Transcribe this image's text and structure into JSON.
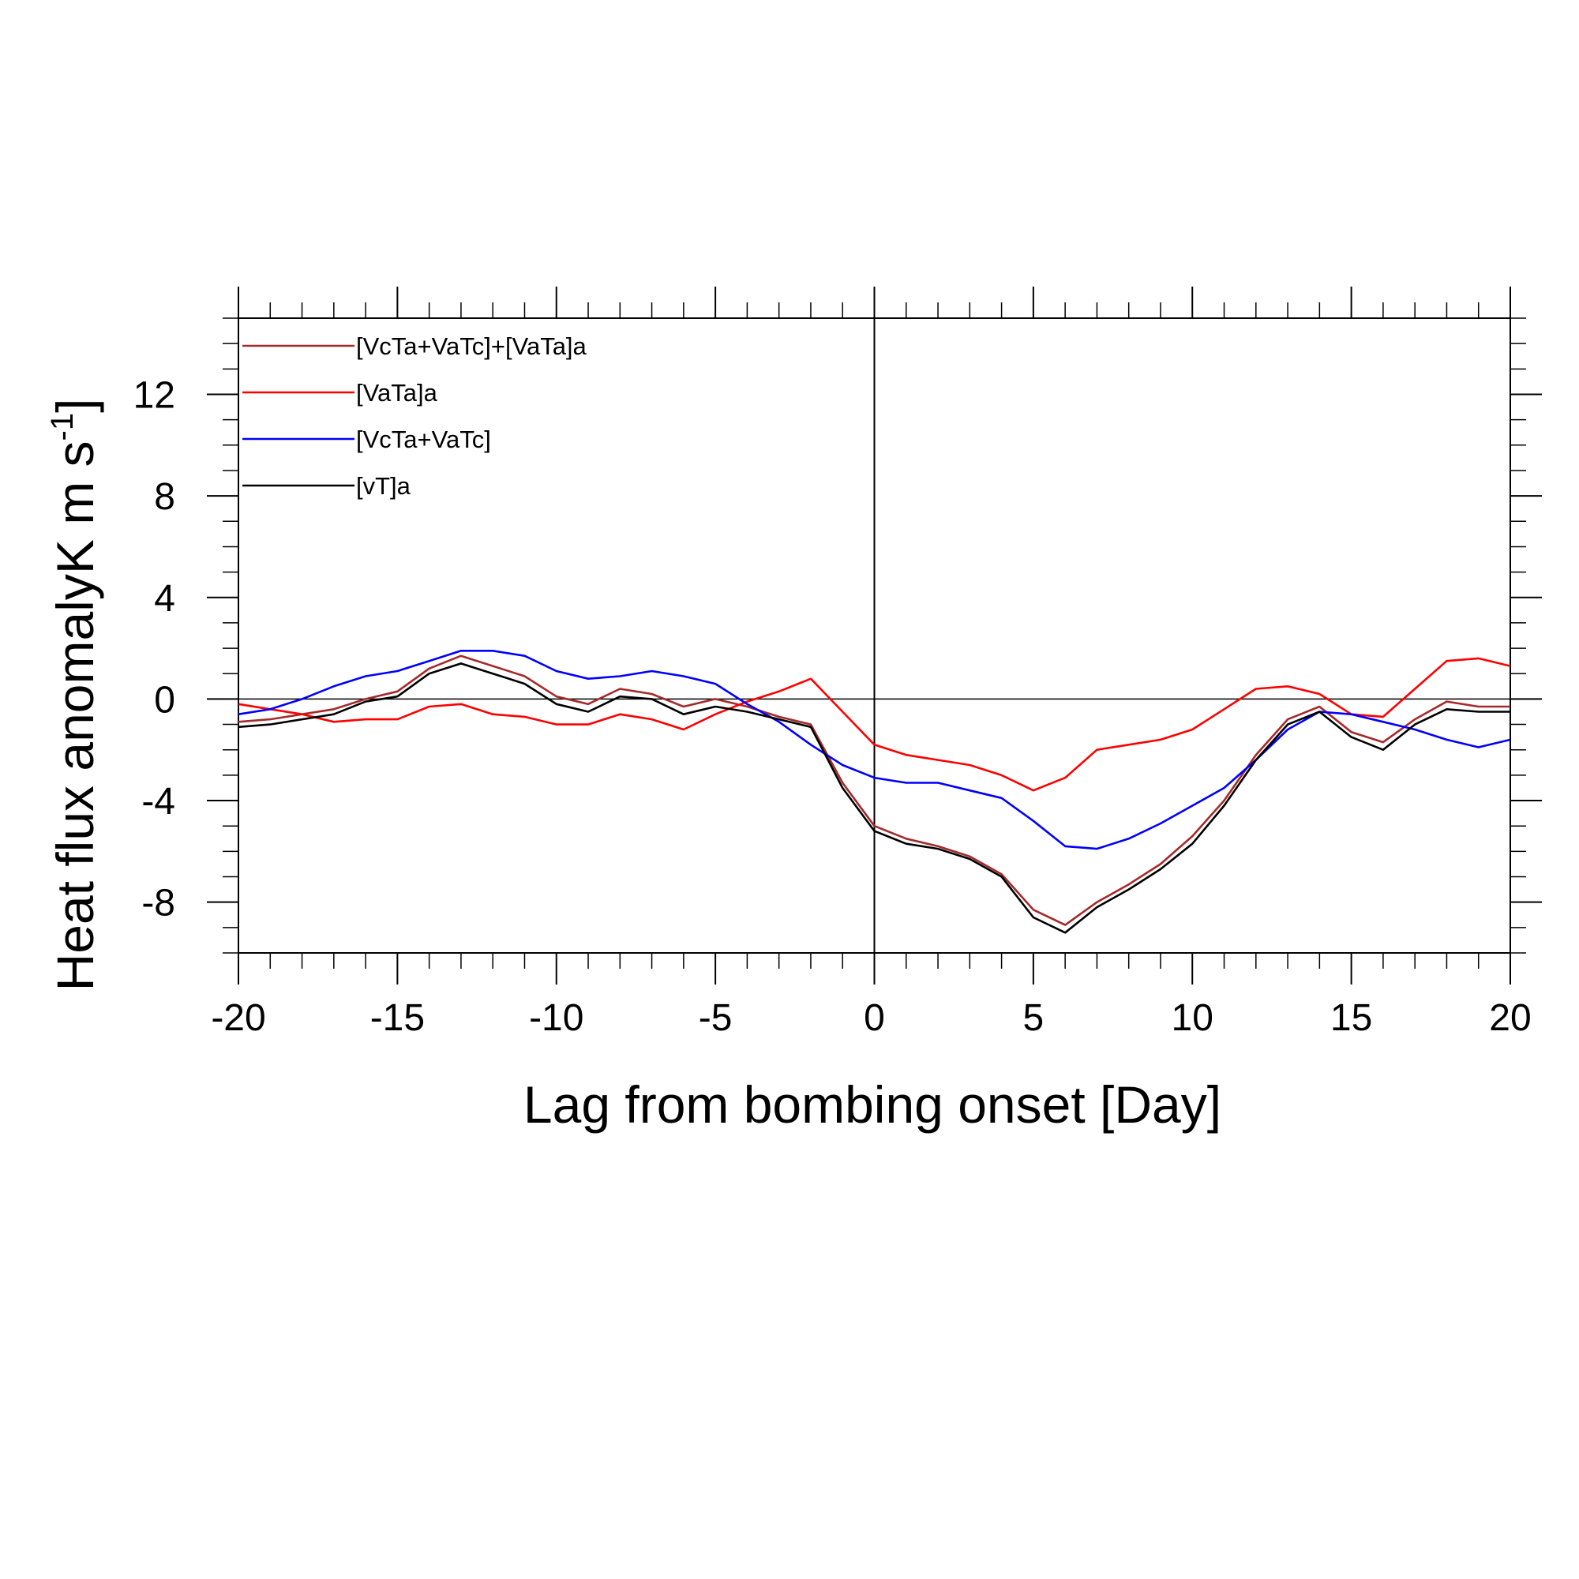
{
  "chart_data": {
    "type": "line",
    "title": "",
    "xlabel": "Lag from bombing onset [Day]",
    "ylabel": {
      "main": "Heat flux anomalyK m s",
      "superscript": "-1",
      "close": "]"
    },
    "xlim": [
      -20,
      20
    ],
    "ylim": [
      -10,
      15
    ],
    "x_ticks": [
      -20,
      -15,
      -10,
      -5,
      0,
      5,
      10,
      15,
      20
    ],
    "y_ticks": [
      -8,
      -4,
      0,
      4,
      8,
      12
    ],
    "x_ticks_labels": [
      "-20",
      "-15",
      "-10",
      "-5",
      "0",
      "5",
      "10",
      "15",
      "20"
    ],
    "y_ticks_labels": [
      "-8",
      "-4",
      "0",
      "4",
      "8",
      "12"
    ],
    "x_minor_step": 1,
    "y_minor_step": 1,
    "reference_lines": {
      "horizontal": 0,
      "vertical": 0
    },
    "grid": false,
    "legend_position": "top-left",
    "x": [
      -20,
      -19,
      -18,
      -17,
      -16,
      -15,
      -14,
      -13,
      -12,
      -11,
      -10,
      -9,
      -8,
      -7,
      -6,
      -5,
      -4,
      -3,
      -2,
      -1,
      0,
      1,
      2,
      3,
      4,
      5,
      6,
      7,
      8,
      9,
      10,
      11,
      12,
      13,
      14,
      15,
      16,
      17,
      18,
      19,
      20
    ],
    "series": [
      {
        "name": "[VcTa+VaTc]+[VaTa]a",
        "color": "#a52a2a",
        "values": [
          -0.9,
          -0.8,
          -0.6,
          -0.4,
          0.0,
          0.3,
          1.2,
          1.7,
          1.3,
          0.9,
          0.1,
          -0.2,
          0.4,
          0.2,
          -0.3,
          0.0,
          -0.3,
          -0.7,
          -1.0,
          -3.3,
          -5.0,
          -5.5,
          -5.8,
          -6.2,
          -6.9,
          -8.3,
          -8.9,
          -8.0,
          -7.3,
          -6.5,
          -5.4,
          -4.0,
          -2.2,
          -0.8,
          -0.3,
          -1.3,
          -1.7,
          -0.8,
          -0.1,
          -0.3,
          -0.3
        ]
      },
      {
        "name": "[VaTa]a",
        "color": "#ff0000",
        "values": [
          -0.2,
          -0.4,
          -0.6,
          -0.9,
          -0.8,
          -0.8,
          -0.3,
          -0.2,
          -0.6,
          -0.7,
          -1.0,
          -1.0,
          -0.6,
          -0.8,
          -1.2,
          -0.6,
          -0.1,
          0.3,
          0.8,
          -0.5,
          -1.8,
          -2.2,
          -2.4,
          -2.6,
          -3.0,
          -3.6,
          -3.1,
          -2.0,
          -1.8,
          -1.6,
          -1.2,
          -0.4,
          0.4,
          0.5,
          0.2,
          -0.6,
          -0.7,
          0.4,
          1.5,
          1.6,
          1.3
        ]
      },
      {
        "name": "[VcTa+VaTc]",
        "color": "#0000ff",
        "values": [
          -0.6,
          -0.4,
          0.0,
          0.5,
          0.9,
          1.1,
          1.5,
          1.9,
          1.9,
          1.7,
          1.1,
          0.8,
          0.9,
          1.1,
          0.9,
          0.6,
          -0.2,
          -0.9,
          -1.8,
          -2.6,
          -3.1,
          -3.3,
          -3.3,
          -3.6,
          -3.9,
          -4.8,
          -5.8,
          -5.9,
          -5.5,
          -4.9,
          -4.2,
          -3.5,
          -2.4,
          -1.2,
          -0.5,
          -0.6,
          -0.9,
          -1.2,
          -1.6,
          -1.9,
          -1.6
        ]
      },
      {
        "name": "[vT]a",
        "color": "#000000",
        "values": [
          -1.1,
          -1.0,
          -0.8,
          -0.6,
          -0.1,
          0.1,
          1.0,
          1.4,
          1.0,
          0.6,
          -0.2,
          -0.5,
          0.1,
          0.0,
          -0.6,
          -0.3,
          -0.5,
          -0.8,
          -1.1,
          -3.5,
          -5.2,
          -5.7,
          -5.9,
          -6.3,
          -7.0,
          -8.6,
          -9.2,
          -8.2,
          -7.5,
          -6.7,
          -5.7,
          -4.2,
          -2.4,
          -1.0,
          -0.5,
          -1.5,
          -2.0,
          -1.0,
          -0.4,
          -0.5,
          -0.5
        ]
      }
    ]
  }
}
